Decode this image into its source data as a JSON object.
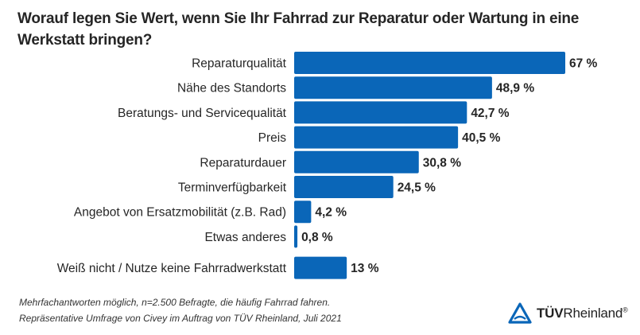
{
  "header": {
    "title": "Worauf legen Sie Wert, wenn Sie Ihr Fahrrad zur Reparatur oder Wartung in eine Werkstatt bringen?"
  },
  "chart_data": {
    "type": "bar",
    "orientation": "horizontal",
    "title": "Worauf legen Sie Wert, wenn Sie Ihr Fahrrad zur Reparatur oder Wartung in eine Werkstatt bringen?",
    "xlabel": "",
    "ylabel": "",
    "unit": "%",
    "grid": false,
    "xlim": [
      0,
      67
    ],
    "categories": [
      "Reparaturqualität",
      "Nähe des Standorts",
      "Beratungs- und Servicequalität",
      "Preis",
      "Reparaturdauer",
      "Terminverfügbarkeit",
      "Angebot von Ersatzmobilität (z.B. Rad)",
      "Etwas anderes",
      "Weiß nicht / Nutze keine Fahrradwerkstatt"
    ],
    "values": [
      67,
      48.9,
      42.7,
      40.5,
      30.8,
      24.5,
      4.2,
      0.8,
      13
    ],
    "value_labels": [
      "67 %",
      "48,9 %",
      "42,7 %",
      "40,5 %",
      "30,8 %",
      "24,5 %",
      "4,2 %",
      "0,8 %",
      "13 %"
    ],
    "separated_last": true,
    "bar_color": "#0a66b8"
  },
  "footnotes": {
    "line1": "Mehrfachantworten möglich, n=2.500 Befragte, die häufig Fahrrad fahren.",
    "line2": "Repräsentative Umfrage von Civey im Auftrag von TÜV Rheinland, Juli 2021"
  },
  "logo": {
    "icon": "tuv-triangle-icon",
    "brand_bold": "TÜV",
    "brand_regular": "Rheinland",
    "registered": "®",
    "color": "#0a66b8"
  }
}
